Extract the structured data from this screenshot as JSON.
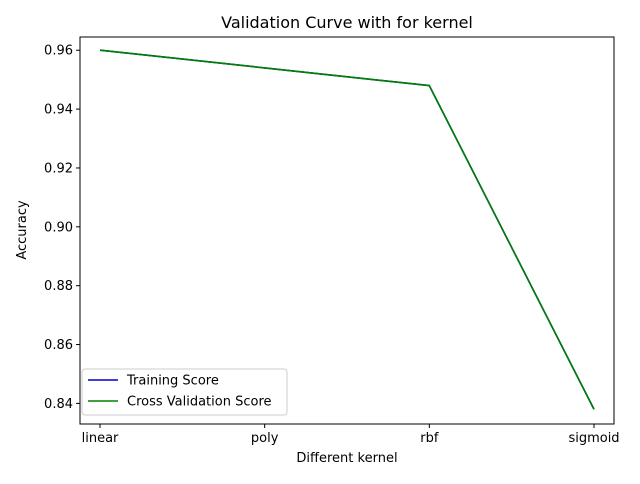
{
  "chart_data": {
    "type": "line",
    "title": "Validation Curve with for kernel",
    "xlabel": "Different kernel",
    "ylabel": "Accuracy",
    "categories": [
      "linear",
      "poly",
      "rbf",
      "sigmoid"
    ],
    "ylim": [
      0.833,
      0.9645
    ],
    "yticks": [
      "0.84",
      "0.86",
      "0.88",
      "0.90",
      "0.92",
      "0.94",
      "0.96"
    ],
    "grid": false,
    "legend_position": "lower-left",
    "series": [
      {
        "name": "Training Score",
        "color": "#0000cc",
        "values": [
          0.96,
          0.954,
          0.948,
          0.838
        ]
      },
      {
        "name": "Cross Validation Score",
        "color": "#008000",
        "values": [
          0.96,
          0.954,
          0.948,
          0.838
        ]
      }
    ]
  }
}
